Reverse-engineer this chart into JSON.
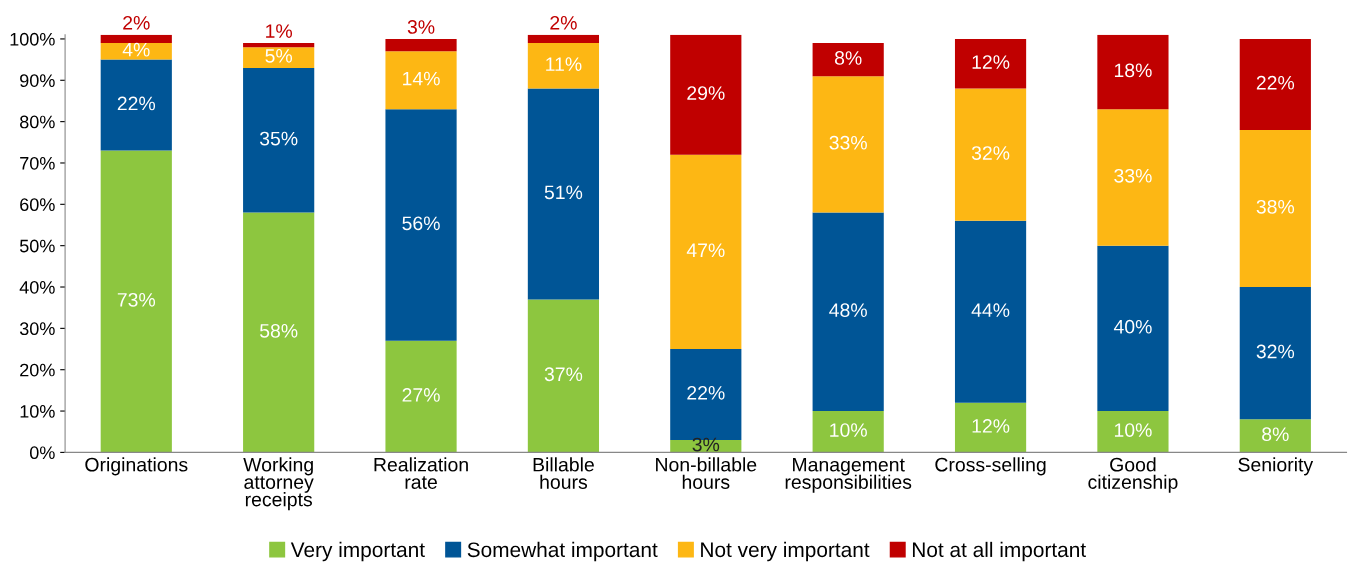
{
  "chart_data": {
    "type": "bar",
    "stacked": true,
    "categories": [
      "Originations",
      "Working\nattorney\nreceipts",
      "Realization\nrate",
      "Billable\nhours",
      "Non-billable\nhours",
      "Management\nresponsibilities",
      "Cross-selling",
      "Good\ncitizenship",
      "Seniority"
    ],
    "series": [
      {
        "name": "Very important",
        "color": "#8dc63f",
        "values": [
          73,
          58,
          27,
          37,
          3,
          10,
          12,
          10,
          8
        ],
        "value_labels": [
          "73%",
          "58%",
          "27%",
          "37%",
          "3%",
          "10%",
          "12%",
          "10%",
          "8%"
        ]
      },
      {
        "name": "Somewhat important",
        "color": "#005596",
        "values": [
          22,
          35,
          56,
          51,
          22,
          48,
          44,
          40,
          32
        ],
        "value_labels": [
          "22%",
          "35%",
          "56%",
          "51%",
          "22%",
          "48%",
          "44%",
          "40%",
          "32%"
        ]
      },
      {
        "name": "Not very important",
        "color": "#fdb714",
        "values": [
          4,
          5,
          14,
          11,
          47,
          33,
          32,
          33,
          38
        ],
        "value_labels": [
          "4%",
          "5%",
          "14%",
          "11%",
          "47%",
          "33%",
          "32%",
          "33%",
          "38%"
        ]
      },
      {
        "name": "Not at all important",
        "color": "#c00000",
        "values": [
          2,
          1,
          3,
          2,
          29,
          8,
          12,
          18,
          22
        ],
        "value_labels": [
          "2%",
          "1%",
          "3%",
          "2%",
          "29%",
          "8%",
          "12%",
          "18%",
          "22%"
        ]
      }
    ],
    "ylim": [
      0,
      101
    ],
    "yticks": [
      {
        "value": 0,
        "label": "0%"
      },
      {
        "value": 10,
        "label": "10%"
      },
      {
        "value": 20,
        "label": "20%"
      },
      {
        "value": 30,
        "label": "30%"
      },
      {
        "value": 40,
        "label": "40%"
      },
      {
        "value": 50,
        "label": "50%"
      },
      {
        "value": 60,
        "label": "60%"
      },
      {
        "value": 70,
        "label": "70%"
      },
      {
        "value": 80,
        "label": "80%"
      },
      {
        "value": 90,
        "label": "90%"
      },
      {
        "value": 100,
        "label": "100%"
      }
    ],
    "grid": false,
    "legend": "bottom"
  }
}
